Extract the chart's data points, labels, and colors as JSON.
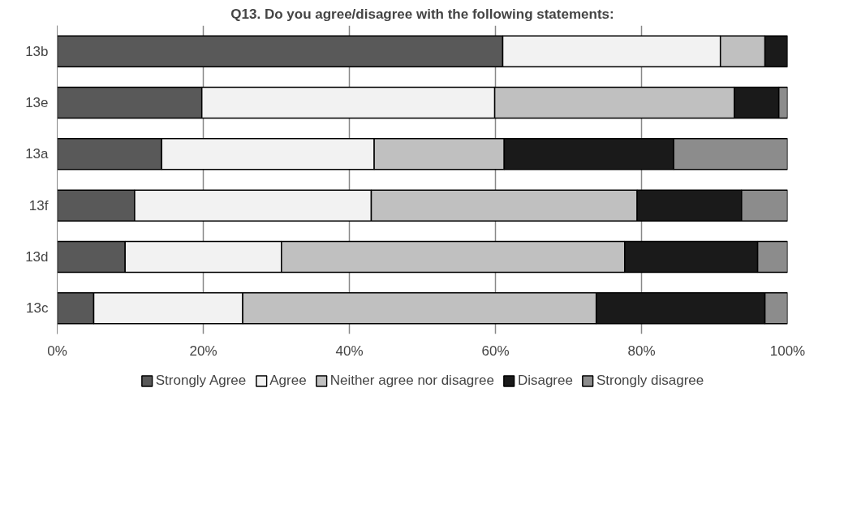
{
  "chart_data": {
    "type": "bar",
    "orientation": "horizontal",
    "stacked": true,
    "title": "Q13. Do you agree/disagree with the following statements:",
    "categories": [
      "13b",
      "13e",
      "13a",
      "13f",
      "13d",
      "13c"
    ],
    "series": [
      {
        "name": "Strongly Agree",
        "color": "#595959",
        "values": [
          61.0,
          19.8,
          14.3,
          10.6,
          9.3,
          5.0
        ]
      },
      {
        "name": "Agree",
        "color": "#f2f2f2",
        "values": [
          29.8,
          40.1,
          29.1,
          32.4,
          21.4,
          20.4
        ]
      },
      {
        "name": "Neither agree nor disagree",
        "color": "#c0c0c0",
        "values": [
          6.1,
          32.8,
          17.8,
          36.4,
          47.0,
          48.4
        ]
      },
      {
        "name": "Disagree",
        "color": "#1a1a1a",
        "values": [
          3.1,
          6.1,
          23.2,
          14.3,
          18.2,
          23.1
        ]
      },
      {
        "name": "Strongly disagree",
        "color": "#8c8c8c",
        "values": [
          null,
          1.2,
          15.6,
          6.3,
          4.1,
          3.1
        ]
      }
    ],
    "xlim": [
      0,
      100
    ],
    "xticks": [
      {
        "value": 0,
        "label": "0%"
      },
      {
        "value": 20,
        "label": "20%"
      },
      {
        "value": 40,
        "label": "40%"
      },
      {
        "value": 60,
        "label": "60%"
      },
      {
        "value": 80,
        "label": "80%"
      },
      {
        "value": 100,
        "label": "100%"
      }
    ],
    "grid": "x",
    "legend": "bottom"
  }
}
